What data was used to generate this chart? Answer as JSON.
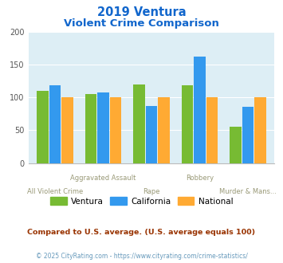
{
  "title_line1": "2019 Ventura",
  "title_line2": "Violent Crime Comparison",
  "categories": [
    "All Violent Crime",
    "Aggravated Assault",
    "Rape",
    "Robbery",
    "Murder & Mans..."
  ],
  "ventura": [
    110,
    105,
    120,
    118,
    55
  ],
  "california": [
    118,
    107,
    87,
    162,
    86
  ],
  "national": [
    100,
    100,
    100,
    100,
    100
  ],
  "color_ventura": "#77bb33",
  "color_california": "#3399ee",
  "color_national": "#ffaa33",
  "ylim": [
    0,
    200
  ],
  "yticks": [
    0,
    50,
    100,
    150,
    200
  ],
  "bg_color": "#ddeef5",
  "title_color": "#1166cc",
  "xlabel_color": "#999977",
  "footnote1": "Compared to U.S. average. (U.S. average equals 100)",
  "footnote2": "© 2025 CityRating.com - https://www.cityrating.com/crime-statistics/",
  "footnote1_color": "#993300",
  "footnote2_color": "#6699bb",
  "xlabels_top": [
    "",
    "Aggravated Assault",
    "",
    "Robbery",
    ""
  ],
  "xlabels_bot": [
    "All Violent Crime",
    "",
    "Rape",
    "",
    "Murder & Mans..."
  ]
}
